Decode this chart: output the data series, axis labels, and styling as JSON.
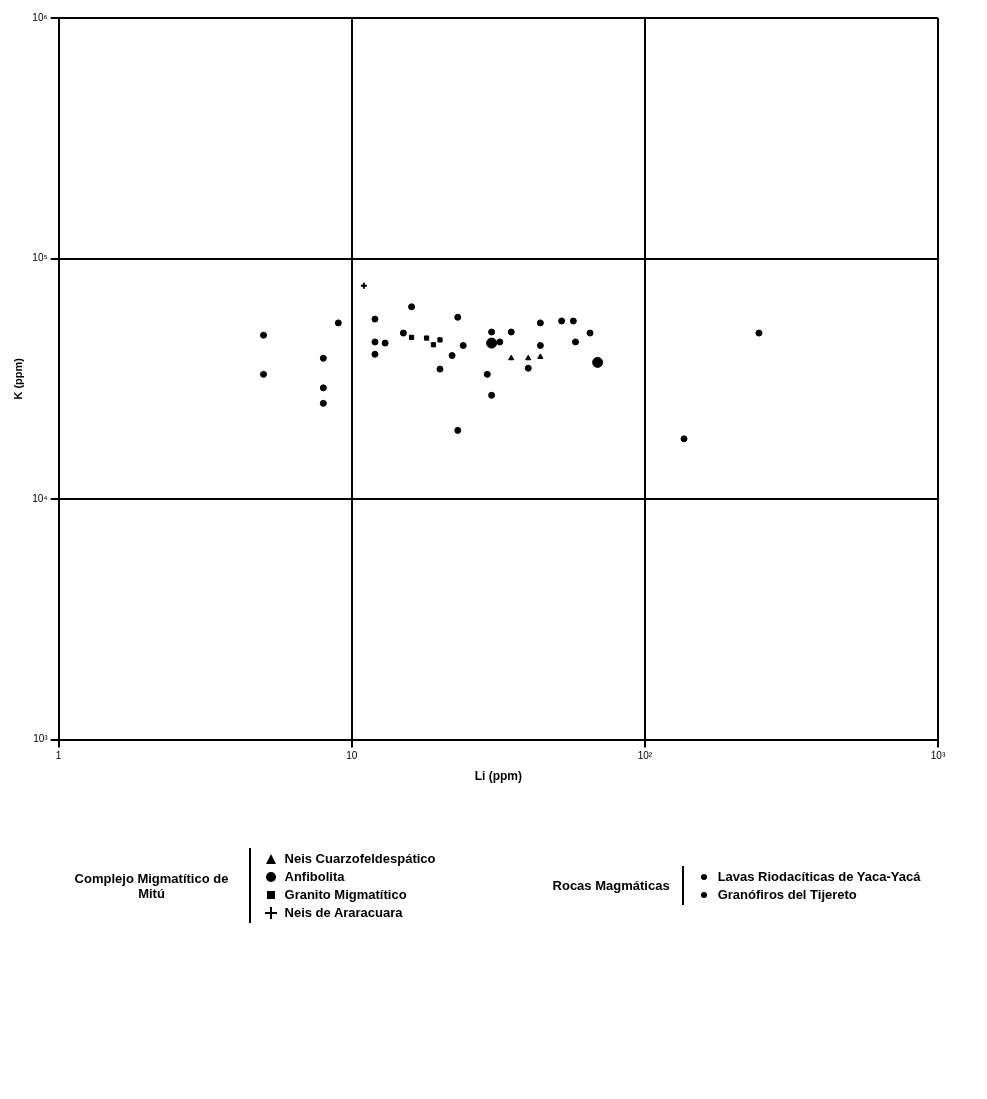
{
  "chart_data": {
    "type": "scatter",
    "xlabel": "Li (ppm)",
    "ylabel": "K (ppm)",
    "log": "xy",
    "grid": true,
    "legend": "bottom",
    "xlim": [
      1,
      1000
    ],
    "ylim": [
      1000,
      1000000
    ],
    "xticks": [
      1,
      10,
      {
        "value": 100,
        "label": "10²"
      },
      {
        "value": 1000,
        "label": "10³"
      }
    ],
    "yticks": [
      {
        "value": 1000,
        "label": "10³"
      },
      {
        "value": 10000,
        "label": "10⁴"
      },
      {
        "value": 100000,
        "label": "10⁵"
      },
      {
        "value": 1000000,
        "label": "10⁶"
      }
    ],
    "annotations": [
      "Complejo Migmatítico de Mitú",
      "Rocas Magmáticas"
    ],
    "series": [
      {
        "name": "Neis Cuarzofeldespático",
        "color": "#000000",
        "marker": "triangle",
        "x": [
          35,
          40,
          44
        ],
        "values": [
          38500,
          38500,
          39000
        ]
      },
      {
        "name": "Anfibolita",
        "color": "#000000",
        "marker": "circle",
        "x": [
          30,
          69
        ],
        "values": [
          44500,
          37000
        ]
      },
      {
        "name": "Granito Migmatítico",
        "color": "#000000",
        "marker": "square",
        "x": [
          16,
          18,
          19,
          20
        ],
        "values": [
          47000,
          46700,
          43800,
          45900
        ]
      },
      {
        "name": "Neis de Araracuara",
        "color": "#000000",
        "marker": "cross",
        "x": [
          11
        ],
        "values": [
          77000
        ]
      },
      {
        "name": "Lavas Riodacíticas de Yaca-Yacá",
        "color": "#000000",
        "marker": "circle"
      },
      {
        "name": "Granófiros del Tijereto",
        "color": "#000000",
        "marker": "circle",
        "x": [
          5,
          5,
          9,
          8,
          8,
          8,
          12,
          16,
          23,
          15,
          12,
          13,
          24,
          12,
          22,
          20,
          23,
          30,
          35,
          44,
          52,
          57,
          65,
          58,
          44,
          29,
          30,
          40,
          32,
          245,
          136
        ],
        "values": [
          48000,
          33000,
          54000,
          38500,
          29000,
          25000,
          56000,
          63000,
          57000,
          49000,
          45000,
          44500,
          43500,
          40000,
          39500,
          34700,
          19300,
          49500,
          49500,
          54000,
          55000,
          55000,
          49000,
          45000,
          43500,
          33000,
          27000,
          35000,
          45000,
          49000,
          17800
        ]
      }
    ]
  }
}
